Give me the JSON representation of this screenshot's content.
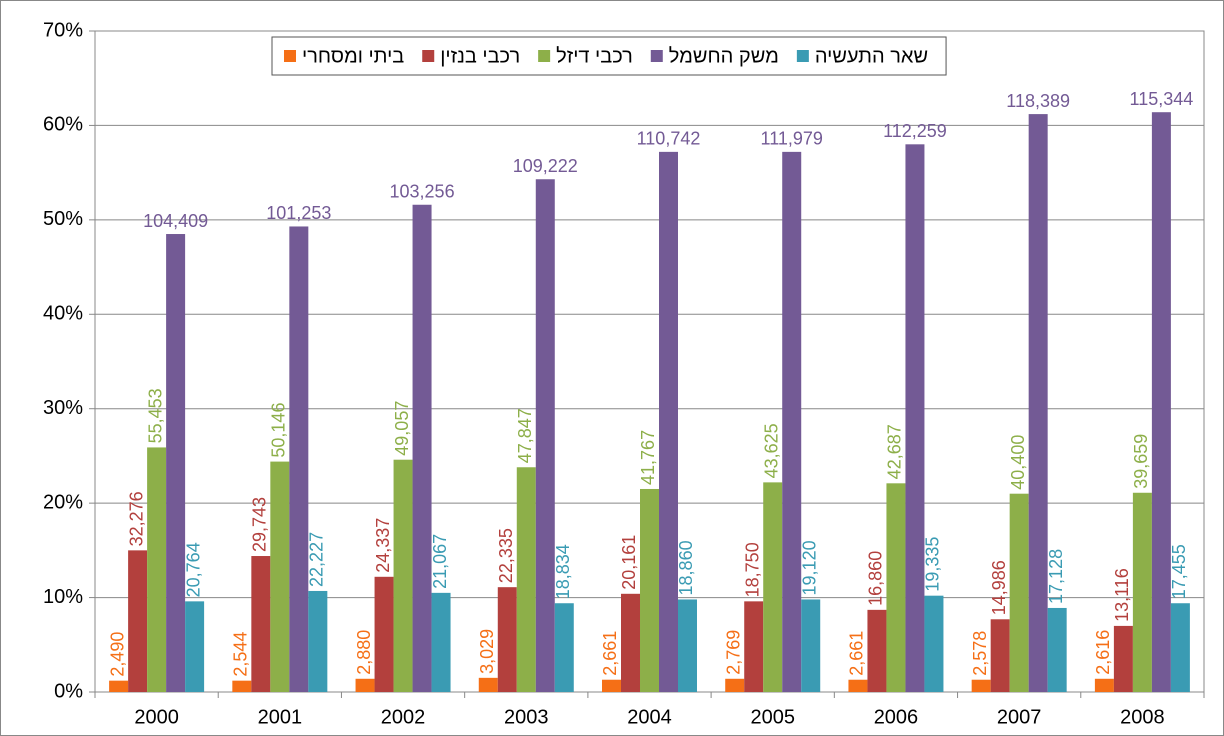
{
  "chart_data": {
    "type": "bar",
    "categories": [
      "2000",
      "2001",
      "2002",
      "2003",
      "2004",
      "2005",
      "2006",
      "2007",
      "2008"
    ],
    "ylim": [
      0,
      70
    ],
    "yticks": [
      {
        "value": 0,
        "label": "0%"
      },
      {
        "value": 10,
        "label": "10%"
      },
      {
        "value": 20,
        "label": "20%"
      },
      {
        "value": 30,
        "label": "30%"
      },
      {
        "value": 40,
        "label": "40%"
      },
      {
        "value": 50,
        "label": "50%"
      },
      {
        "value": 60,
        "label": "60%"
      },
      {
        "value": 70,
        "label": "70%"
      }
    ],
    "grid": true,
    "legend": "top",
    "series": [
      {
        "name": "ביתי ומסחרי",
        "color": "#f56f16",
        "label_orientation": "vertical",
        "values": [
          1.2,
          1.2,
          1.4,
          1.5,
          1.3,
          1.4,
          1.3,
          1.3,
          1.4
        ],
        "data_labels": [
          "2,490",
          "2,544",
          "2,880",
          "3,029",
          "2,661",
          "2,769",
          "2,661",
          "2,578",
          "2,616"
        ]
      },
      {
        "name": "רכבי בנזין",
        "color": "#b3403d",
        "label_orientation": "vertical",
        "values": [
          15.0,
          14.4,
          12.2,
          11.1,
          10.4,
          9.6,
          8.7,
          7.7,
          7.0
        ],
        "data_labels": [
          "32,276",
          "29,743",
          "24,337",
          "22,335",
          "20,161",
          "18,750",
          "16,860",
          "14,986",
          "13,116"
        ]
      },
      {
        "name": "רכבי דיזל",
        "color": "#8daf49",
        "label_orientation": "vertical",
        "values": [
          25.9,
          24.4,
          24.6,
          23.8,
          21.5,
          22.2,
          22.1,
          21.0,
          21.1
        ],
        "data_labels": [
          "55,453",
          "50,146",
          "49,057",
          "47,847",
          "41,767",
          "43,625",
          "42,687",
          "40,400",
          "39,659"
        ]
      },
      {
        "name": "משק החשמל",
        "color": "#735a95",
        "label_orientation": "horizontal",
        "values": [
          48.5,
          49.3,
          51.6,
          54.3,
          57.2,
          57.2,
          58.0,
          61.2,
          61.4
        ],
        "data_labels": [
          "104,409",
          "101,253",
          "103,256",
          "109,222",
          "110,742",
          "111,979",
          "112,259",
          "118,389",
          "115,344"
        ]
      },
      {
        "name": "שאר התעשיה",
        "color": "#3a9bb3",
        "label_orientation": "vertical",
        "values": [
          9.6,
          10.7,
          10.5,
          9.4,
          9.8,
          9.8,
          10.2,
          8.9,
          9.4
        ],
        "data_labels": [
          "20,764",
          "22,227",
          "21,067",
          "18,834",
          "18,860",
          "19,120",
          "19,335",
          "17,128",
          "17,455"
        ]
      }
    ]
  }
}
